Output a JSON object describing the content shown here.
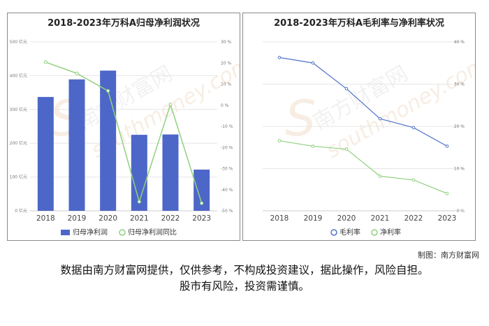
{
  "chart_data": [
    {
      "type": "bar",
      "title": "2018-2023年万科A归母净利润状况",
      "categories": [
        "2018",
        "2019",
        "2020",
        "2021",
        "2022",
        "2023"
      ],
      "series": [
        {
          "name": "归母净利润",
          "type": "bar",
          "axis": "left",
          "values": [
            337,
            389,
            415,
            225,
            226,
            122
          ]
        },
        {
          "name": "归母净利润同比",
          "type": "line",
          "axis": "right",
          "values": [
            20.4,
            15.1,
            6.8,
            -45.7,
            0.4,
            -46.4
          ]
        }
      ],
      "left_axis": {
        "ticks": [
          "0 亿元",
          "100 亿元",
          "200 亿元",
          "300 亿元",
          "400 亿元",
          "500 亿元"
        ],
        "ylim": [
          0,
          500
        ]
      },
      "right_axis": {
        "ticks": [
          "-50 %",
          "-40 %",
          "-30 %",
          "-20 %",
          "-10 %",
          "0 %",
          "10 %",
          "20 %",
          "30 %"
        ],
        "ylim": [
          -50,
          30
        ]
      },
      "legend_position": "bottom",
      "colors": {
        "bar": "#4d67c8",
        "line": "#8fd17e"
      }
    },
    {
      "type": "line",
      "title": "2018-2023年万科A毛利率与净利率状况",
      "categories": [
        "2018",
        "2019",
        "2020",
        "2021",
        "2022",
        "2023"
      ],
      "series": [
        {
          "name": "毛利率",
          "values": [
            36.3,
            35.0,
            28.9,
            21.8,
            19.7,
            15.3
          ]
        },
        {
          "name": "净利率",
          "values": [
            16.6,
            15.3,
            14.6,
            8.2,
            7.3,
            4.1
          ]
        }
      ],
      "right_axis": {
        "ticks": [
          "0 %",
          "10 %",
          "20 %",
          "30 %",
          "40 %"
        ],
        "ylim": [
          0,
          40
        ]
      },
      "legend_position": "bottom",
      "colors": {
        "line1": "#5073c8",
        "line2": "#8fd17e"
      }
    }
  ],
  "credit": "制图：南方财富网",
  "disclaimer": {
    "line1": "数据由南方财富网提供，仅供参考，不构成投资建议，据此操作，风险自担。",
    "line2": "股市有风险，投资需谨慎。"
  },
  "watermark": {
    "cn": "南方财富网",
    "en": "southmoney.com",
    "logo_letter": "S"
  }
}
